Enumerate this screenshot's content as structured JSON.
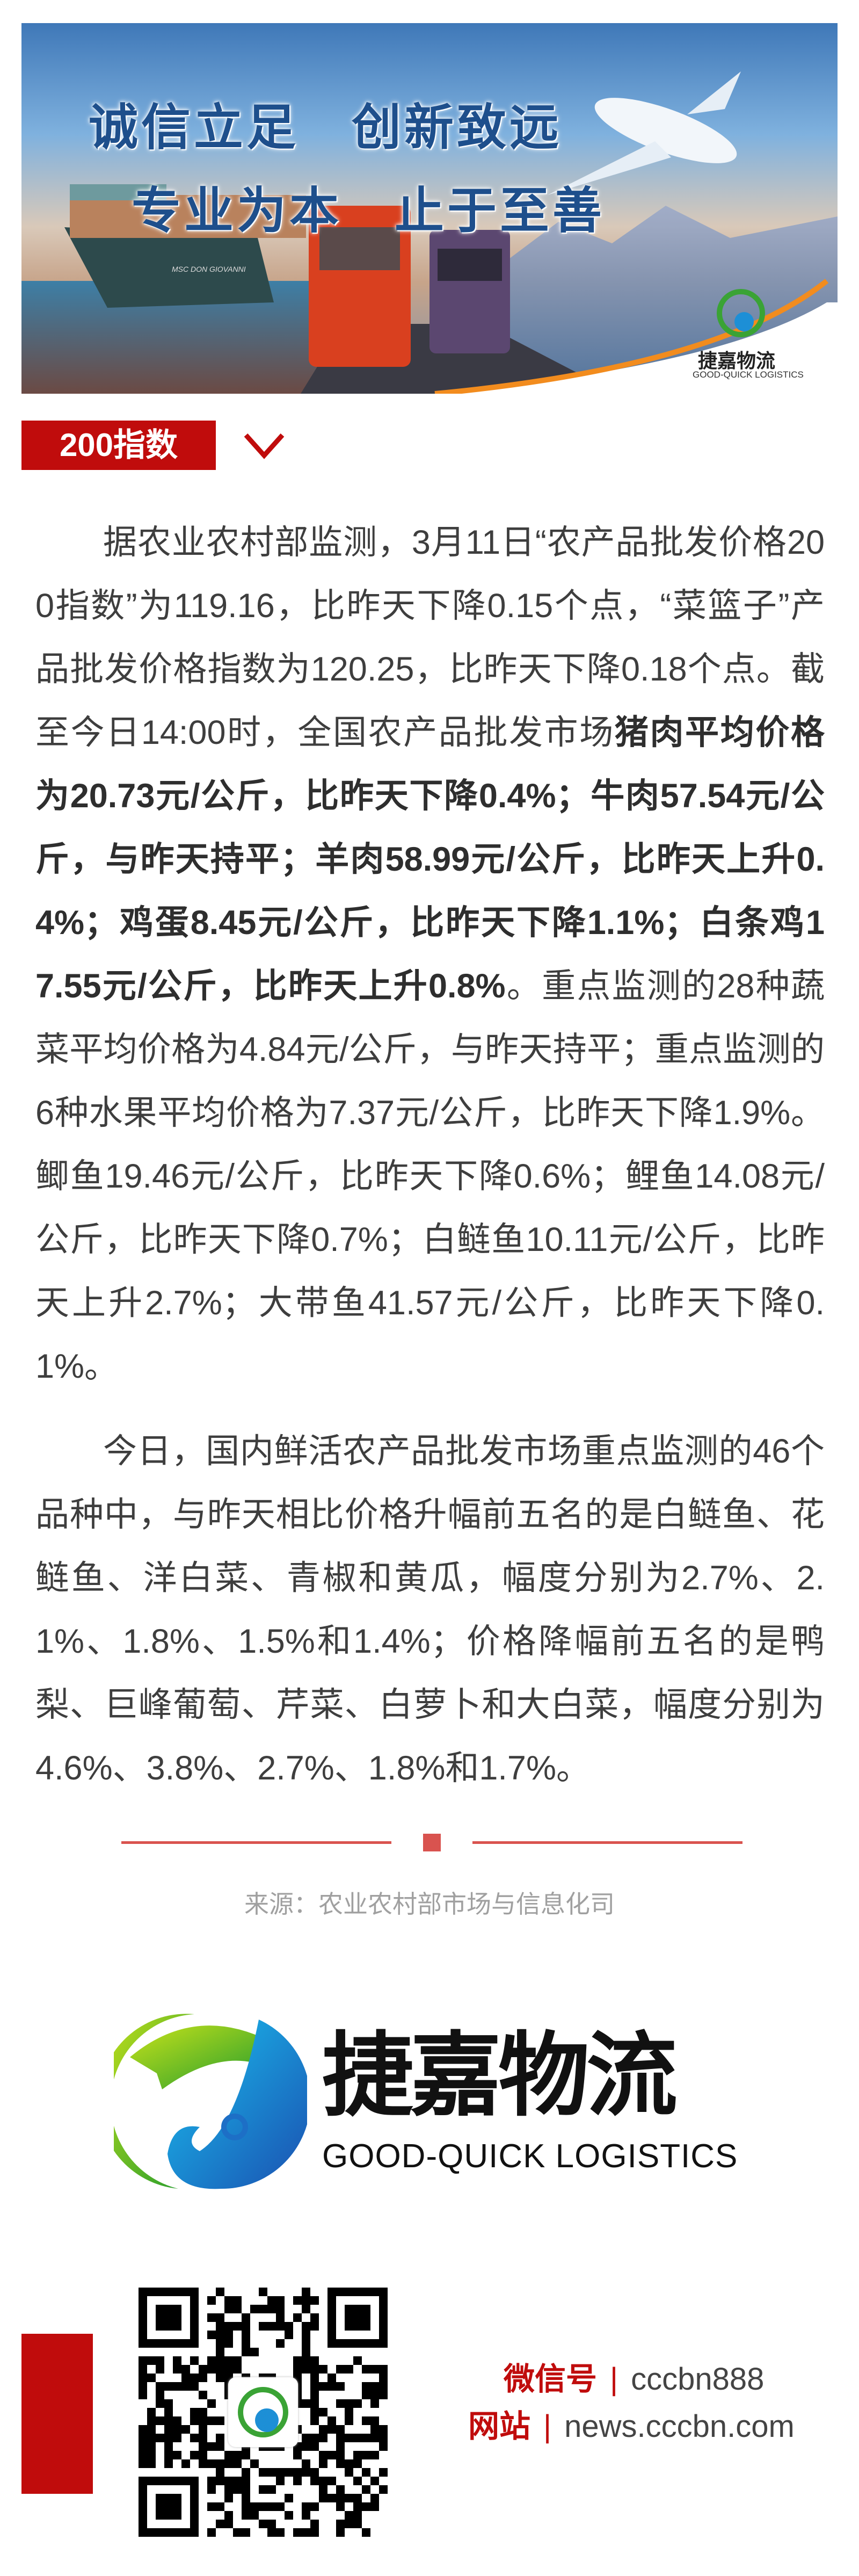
{
  "banner": {
    "slogan_line1": "诚信立足　创新致远",
    "slogan_line2": "专业为本　止于至善",
    "ship_name": "MSC DON GIOVANNI",
    "logo_cn": "捷嘉物流",
    "logo_en": "GOOD-QUICK LOGISTICS"
  },
  "section_tag": {
    "label": "200指数",
    "icon": "chevron-down-icon",
    "color": "#c00c0c"
  },
  "article": {
    "p1": {
      "s0": "据农业农村部监测，3月11日“农产品批发价格200指数”为119.16，比昨天下降0.15个点，“菜篮子”产品批发价格指数为120.25，比昨天下降0.18个点。截至今日14:00时，全国农产品批发市场",
      "s1_bold": "猪肉平均价格为20.73元/公斤，比昨天下降0.4%；牛肉57.54元/公斤，与昨天持平；羊肉58.99元/公斤，比昨天上升0.4%；鸡蛋8.45元/公斤，比昨天下降1.1%；白条鸡17.55元/公斤，比昨天上升0.8%",
      "s2": "。重点监测的28种蔬菜平均价格为4.84元/公斤，与昨天持平；重点监测的6种水果平均价格为7.37元/公斤，比昨天下降1.9%。鲫鱼19.46元/公斤，比昨天下降0.6%；鲤鱼14.08元/公斤，比昨天下降0.7%；白鲢鱼10.11元/公斤，比昨天上升2.7%；大带鱼41.57元/公斤，比昨天下降0.1%。"
    },
    "p2": "今日，国内鲜活农产品批发市场重点监测的46个品种中，与昨天相比价格升幅前五名的是白鲢鱼、花鲢鱼、洋白菜、青椒和黄瓜，幅度分别为2.7%、2.1%、1.8%、1.5%和1.4%；价格降幅前五名的是鸭梨、巨峰葡萄、芹菜、白萝卜和大白菜，幅度分别为4.6%、3.8%、2.7%、1.8%和1.7%。"
  },
  "source": "来源：农业农村部市场与信息化司",
  "footer_logo": {
    "cn": "捷嘉物流",
    "en": "GOOD-QUICK LOGISTICS"
  },
  "contact": {
    "wechat_label": "微信号",
    "wechat_value": "cccbn888",
    "website_label": "网站",
    "website_value": "news.cccbn.com",
    "separator": "|",
    "accent_color": "#c00c0c"
  }
}
